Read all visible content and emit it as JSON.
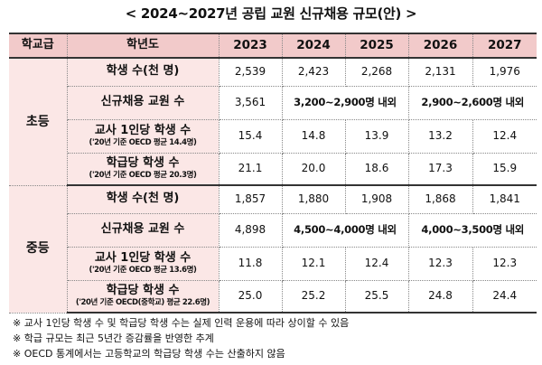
{
  "title": "< 2024~2027년 공립 교원 신규채용 규모(안) >",
  "header": {
    "school_level": "학교급",
    "school_year": "학년도",
    "years": [
      "2023",
      "2024",
      "2025",
      "2026",
      "2027"
    ]
  },
  "groups": [
    {
      "name": "초등",
      "rows": {
        "students": {
          "label": "학생 수(천 명)",
          "values": [
            "2,539",
            "2,423",
            "2,268",
            "2,131",
            "1,976"
          ]
        },
        "hires": {
          "label": "신규채용 교원 수",
          "value_2023": "3,561",
          "range_2024_2025": "3,200~2,900명 내외",
          "range_2026_2027": "2,900~2,600명 내외"
        },
        "per_teacher": {
          "label": "교사 1인당 학생 수",
          "sub": "('20년 기준 OECD 평균 14.4명)",
          "values": [
            "15.4",
            "14.8",
            "13.9",
            "13.2",
            "12.4"
          ]
        },
        "per_class": {
          "label": "학급당 학생 수",
          "sub": "('20년 기준 OECD 평균 20.3명)",
          "values": [
            "21.1",
            "20.0",
            "18.6",
            "17.3",
            "15.9"
          ]
        }
      }
    },
    {
      "name": "중등",
      "rows": {
        "students": {
          "label": "학생 수(천 명)",
          "values": [
            "1,857",
            "1,880",
            "1,908",
            "1,868",
            "1,841"
          ]
        },
        "hires": {
          "label": "신규채용 교원 수",
          "value_2023": "4,898",
          "range_2024_2025": "4,500~4,000명 내외",
          "range_2026_2027": "4,000~3,500명 내외"
        },
        "per_teacher": {
          "label": "교사 1인당 학생 수",
          "sub": "('20년 기준 OECD 평균 13.6명)",
          "values": [
            "11.8",
            "12.1",
            "12.4",
            "12.3",
            "12.3"
          ]
        },
        "per_class": {
          "label": "학급당 학생 수",
          "sub": "('20년 기준 OECD(중학교) 평균 22.6명)",
          "values": [
            "25.0",
            "25.2",
            "25.5",
            "24.8",
            "24.4"
          ]
        }
      }
    }
  ],
  "notes": [
    "※ 교사 1인당 학생 수 및 학급당 학생 수는 실제 인력 운용에 따라 상이할 수 있음",
    "※ 학급 규모는 최근 5년간 증감률을 반영한 추계",
    "※ OECD 통계에서는 고등학교의 학급당 학생 수는 산출하지 않음"
  ]
}
